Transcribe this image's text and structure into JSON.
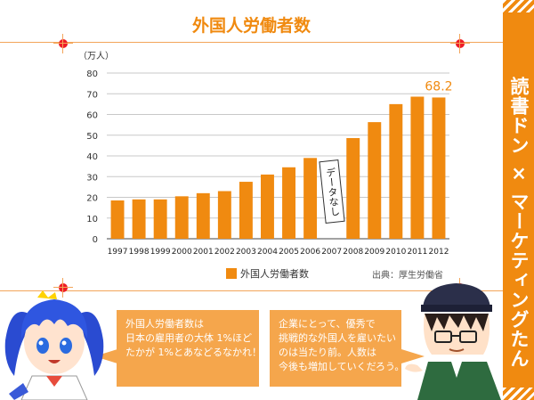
{
  "title": "外国人労働者数",
  "side_title": "読書ドン × マーケティングたん",
  "legend_label": "外国人労働者数",
  "source": "出典：厚生労働省",
  "no_data_label": "データなし",
  "bubbles": {
    "left": [
      "外国人労働者数は",
      "日本の雇用者の大体 1%ほど",
      "たかが 1%とあなどるなかれ！"
    ],
    "right": [
      "企業にとって、優秀で",
      "挑戦的な外国人を雇いたい",
      "のは当たり前。人数は",
      "今後も増加していくだろう。"
    ]
  },
  "colors": {
    "accent": "#f08a10",
    "bubble": "#f5a64c",
    "dot": "#ee1c25"
  },
  "chart_data": {
    "type": "bar",
    "title": "外国人労働者数",
    "ylabel": "（万人）",
    "ylim": [
      0,
      80
    ],
    "yticks": [
      0,
      10,
      20,
      30,
      40,
      50,
      60,
      70,
      80
    ],
    "categories": [
      "1997",
      "1998",
      "1999",
      "2000",
      "2001",
      "2002",
      "2003",
      "2004",
      "2005",
      "2006",
      "2007",
      "2008",
      "2009",
      "2010",
      "2011",
      "2012"
    ],
    "series": [
      {
        "name": "外国人労働者数",
        "values": [
          18.5,
          19,
          19,
          20.5,
          22,
          23,
          27.5,
          31,
          34.5,
          39,
          null,
          48.6,
          56.3,
          65,
          68.6,
          68.2
        ]
      }
    ],
    "annotation": {
      "category": "2012",
      "label": "68.2"
    },
    "legend": "bottom",
    "grid": true
  }
}
